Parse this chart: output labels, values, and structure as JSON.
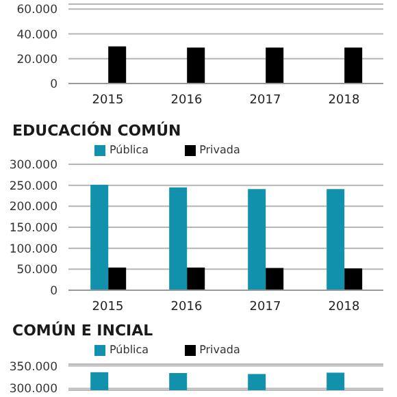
{
  "chart_data": [
    {
      "type": "bar",
      "categories": [
        "2015",
        "2016",
        "2017",
        "2018"
      ],
      "series": [
        {
          "color": "#1191ab",
          "values": [
            null,
            null,
            null,
            null
          ]
        },
        {
          "color": "#000000",
          "values": [
            30000,
            29000,
            29000,
            29000
          ]
        }
      ],
      "ylim": [
        0,
        64000
      ],
      "yticks": [
        {
          "value": 0,
          "label": "0"
        },
        {
          "value": 20000,
          "label": "20.000"
        },
        {
          "value": 40000,
          "label": "40.000"
        },
        {
          "value": 60000,
          "label": "60.000"
        }
      ],
      "grid": "y",
      "legend": false
    },
    {
      "type": "bar",
      "title": "EDUCACIÓN COMÚN",
      "categories": [
        "2015",
        "2016",
        "2017",
        "2018"
      ],
      "series": [
        {
          "name": "Pública",
          "color": "#1191ab",
          "values": [
            251000,
            245000,
            241000,
            241000
          ]
        },
        {
          "name": "Privada",
          "color": "#000000",
          "values": [
            54000,
            54000,
            53000,
            52000
          ]
        }
      ],
      "ylim": [
        0,
        300000
      ],
      "yticks": [
        {
          "value": 0,
          "label": "0"
        },
        {
          "value": 50000,
          "label": "50.000"
        },
        {
          "value": 100000,
          "label": "100.000"
        },
        {
          "value": 150000,
          "label": "150.000"
        },
        {
          "value": 200000,
          "label": "200.000"
        },
        {
          "value": 250000,
          "label": "250.000"
        },
        {
          "value": 300000,
          "label": "300.000"
        }
      ],
      "grid": "y",
      "legend": "top"
    },
    {
      "type": "bar",
      "title": "COMÚN E INCIAL",
      "categories": [
        null,
        null,
        null,
        null
      ],
      "series": [
        {
          "name": "Pública",
          "color": "#1191ab",
          "values": [
            336000,
            334000,
            332000,
            335000
          ]
        },
        {
          "name": "Privada",
          "color": "#000000",
          "values": [
            null,
            null,
            null,
            null
          ]
        }
      ],
      "ylim": [
        296000,
        354000
      ],
      "yticks": [
        {
          "value": 300000,
          "label": "300.000"
        },
        {
          "value": 350000,
          "label": "350.000"
        }
      ],
      "grid": "y",
      "legend": "top",
      "tick_labels": "y"
    }
  ]
}
